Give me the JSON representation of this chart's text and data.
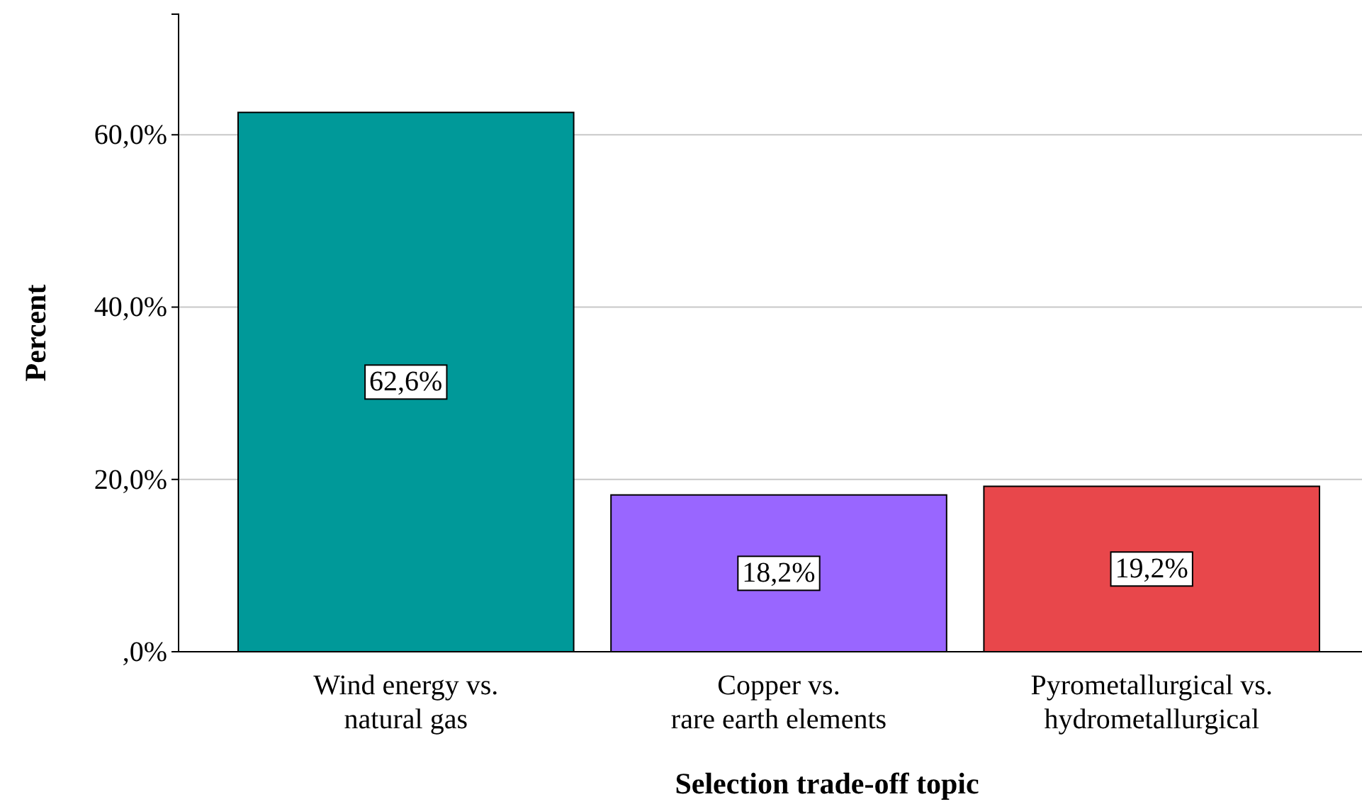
{
  "chart_data": {
    "type": "bar",
    "xlabel": "Selection trade-off topic",
    "ylabel": "Percent",
    "categories": [
      "Wind energy vs.\nnatural gas",
      "Copper vs.\nrare earth elements",
      "Pyrometallurgical vs.\nhydrometallurgical"
    ],
    "values": [
      62.6,
      18.2,
      19.2
    ],
    "colors": [
      "#009999",
      "#9966ff",
      "#e8474b"
    ],
    "value_labels": [
      "62,6%",
      "18,2%",
      "19,2%"
    ],
    "ylim": [
      0,
      74
    ],
    "yticks": [
      {
        "value": 0,
        "label": ",0%"
      },
      {
        "value": 20,
        "label": "20,0%"
      },
      {
        "value": 40,
        "label": "40,0%"
      },
      {
        "value": 60,
        "label": "60,0%"
      }
    ],
    "grid": "y"
  }
}
